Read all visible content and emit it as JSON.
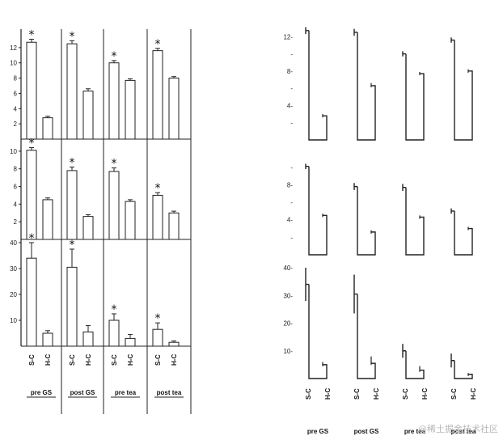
{
  "watermark": "@稀土掘金技术社区",
  "chart_data": [
    {
      "type": "bar",
      "name": "left-panel-top",
      "categories": [
        "S-C",
        "H-C"
      ],
      "groups": [
        "pre GS",
        "post GS",
        "pre tea",
        "post tea"
      ],
      "ylim": [
        0,
        14
      ],
      "yticks": [
        2,
        4,
        6,
        8,
        10,
        12
      ],
      "values": [
        [
          12.7,
          2.8
        ],
        [
          12.5,
          6.3
        ],
        [
          10.0,
          7.7
        ],
        [
          11.6,
          8.0
        ]
      ],
      "errors": [
        [
          0.4,
          0.2
        ],
        [
          0.4,
          0.3
        ],
        [
          0.3,
          0.2
        ],
        [
          0.3,
          0.2
        ]
      ],
      "significant": [
        [
          true,
          false
        ],
        [
          true,
          false
        ],
        [
          true,
          false
        ],
        [
          true,
          false
        ]
      ],
      "marker": "*"
    },
    {
      "type": "bar",
      "name": "left-panel-middle",
      "categories": [
        "S-C",
        "H-C"
      ],
      "groups": [
        "pre GS",
        "post GS",
        "pre tea",
        "post tea"
      ],
      "ylim": [
        0,
        11
      ],
      "yticks": [
        2,
        4,
        6,
        8,
        10
      ],
      "values": [
        [
          10.1,
          4.5
        ],
        [
          7.8,
          2.6
        ],
        [
          7.7,
          4.3
        ],
        [
          5.0,
          3.0
        ]
      ],
      "errors": [
        [
          0.3,
          0.2
        ],
        [
          0.4,
          0.2
        ],
        [
          0.4,
          0.2
        ],
        [
          0.3,
          0.2
        ]
      ],
      "significant": [
        [
          true,
          false
        ],
        [
          true,
          false
        ],
        [
          true,
          false
        ],
        [
          true,
          false
        ]
      ],
      "marker": "*"
    },
    {
      "type": "bar",
      "name": "left-panel-bottom",
      "categories": [
        "S-C",
        "H-C"
      ],
      "groups": [
        "pre GS",
        "post GS",
        "pre tea",
        "post tea"
      ],
      "ylim": [
        0,
        40
      ],
      "yticks": [
        10,
        20,
        30,
        40
      ],
      "values": [
        [
          34,
          5
        ],
        [
          30.5,
          5.5
        ],
        [
          10,
          3
        ],
        [
          6.5,
          1.5
        ]
      ],
      "errors": [
        [
          6,
          1
        ],
        [
          7,
          2.5
        ],
        [
          2.5,
          1.5
        ],
        [
          2.5,
          0.5
        ]
      ],
      "significant": [
        [
          true,
          false
        ],
        [
          true,
          false
        ],
        [
          true,
          false
        ],
        [
          true,
          false
        ]
      ],
      "marker": "*"
    },
    {
      "type": "bar",
      "name": "right-panel-top",
      "style": "outline",
      "categories": [
        "S-C",
        "H-C"
      ],
      "groups": [
        "pre GS",
        "post GS",
        "pre tea",
        "post tea"
      ],
      "ylim": [
        0,
        14
      ],
      "yticks": [
        2,
        4,
        6,
        8,
        10,
        12
      ],
      "ytick_labels": [
        "",
        "4-",
        "",
        "8-",
        "",
        "12-"
      ],
      "values": [
        [
          12.7,
          2.8
        ],
        [
          12.5,
          6.3
        ],
        [
          10.0,
          7.7
        ],
        [
          11.6,
          8.0
        ]
      ],
      "errors": [
        [
          0.4,
          0.2
        ],
        [
          0.4,
          0.3
        ],
        [
          0.3,
          0.2
        ],
        [
          0.3,
          0.2
        ]
      ]
    },
    {
      "type": "bar",
      "name": "right-panel-middle",
      "style": "outline",
      "categories": [
        "S-C",
        "H-C"
      ],
      "groups": [
        "pre GS",
        "post GS",
        "pre tea",
        "post tea"
      ],
      "ylim": [
        0,
        11
      ],
      "yticks": [
        2,
        4,
        6,
        8,
        10
      ],
      "ytick_labels": [
        "",
        "4-",
        "",
        "8-",
        ""
      ],
      "values": [
        [
          10.1,
          4.5
        ],
        [
          7.8,
          2.6
        ],
        [
          7.7,
          4.3
        ],
        [
          5.0,
          3.0
        ]
      ],
      "errors": [
        [
          0.3,
          0.2
        ],
        [
          0.4,
          0.2
        ],
        [
          0.4,
          0.2
        ],
        [
          0.3,
          0.2
        ]
      ]
    },
    {
      "type": "bar",
      "name": "right-panel-bottom",
      "style": "outline",
      "categories": [
        "S-C",
        "H-C"
      ],
      "groups": [
        "pre GS",
        "post GS",
        "pre tea",
        "post tea"
      ],
      "ylim": [
        0,
        40
      ],
      "yticks": [
        10,
        20,
        30,
        40
      ],
      "ytick_labels": [
        "10-",
        "20-",
        "30-",
        "40-"
      ],
      "values": [
        [
          34,
          5
        ],
        [
          30.5,
          5.5
        ],
        [
          10,
          3
        ],
        [
          6.5,
          1.5
        ]
      ],
      "errors": [
        [
          6,
          1
        ],
        [
          7,
          2.5
        ],
        [
          2.5,
          1.5
        ],
        [
          2.5,
          0.5
        ]
      ]
    }
  ]
}
